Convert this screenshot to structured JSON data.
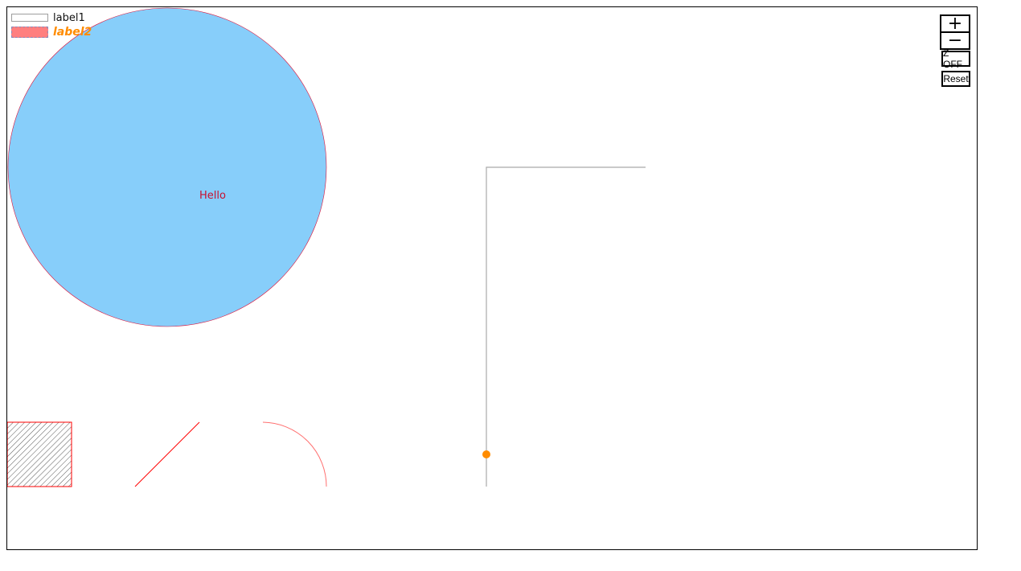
{
  "legend": {
    "items": [
      {
        "label": "label1",
        "label_color": "#111111",
        "swatch_fill": "#ffffff",
        "swatch_stroke": "#9e9e9e"
      },
      {
        "label": "label2",
        "label_color": "#ff8c00",
        "swatch_fill": "#ff7f7f",
        "swatch_stroke": "#8a8ab8"
      }
    ]
  },
  "controls": {
    "zoom_in_label": "+",
    "zoom_out_label": "−",
    "z_toggle_label": "Z OFF",
    "reset_label": "Reset"
  },
  "shapes": {
    "circle": {
      "fill": "#87cefa",
      "stroke": "#dc143c"
    },
    "circle_text": {
      "text": "Hello",
      "color": "#c8102e"
    },
    "hatched_square": {
      "stroke": "#ff0000",
      "hatch": "#555555"
    },
    "diagonal_line": {
      "stroke": "#ff0000"
    },
    "arc": {
      "stroke": "#ff7070"
    },
    "polyline": {
      "stroke": "#a9a9a9"
    },
    "point": {
      "fill": "#ff8c00"
    }
  }
}
